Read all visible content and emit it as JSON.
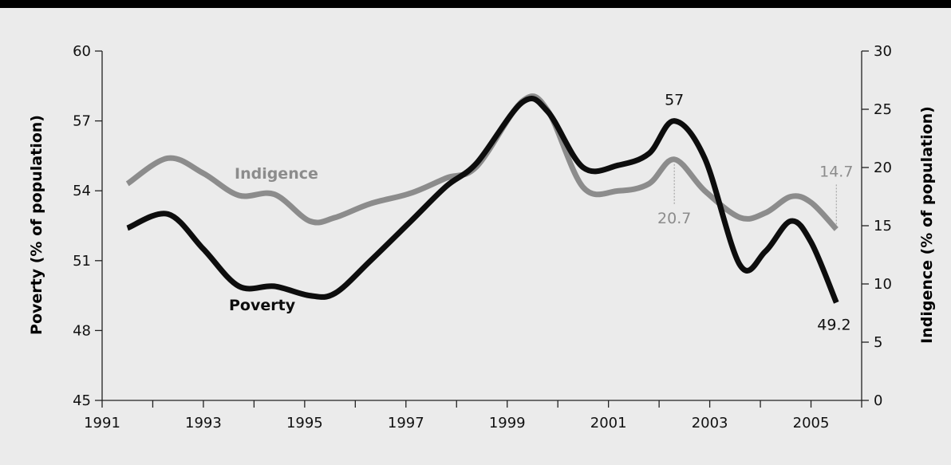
{
  "chart_data": {
    "type": "line",
    "x": [
      1991.5,
      1992.3,
      1993.0,
      1993.7,
      1994.4,
      1995.1,
      1995.6,
      1996.3,
      1997.1,
      1997.8,
      1998.4,
      1999.3,
      1999.8,
      2000.5,
      2001.2,
      2001.8,
      2002.3,
      2002.9,
      2003.6,
      2004.1,
      2004.6,
      2005.0,
      2005.5
    ],
    "series": [
      {
        "name": "Poverty",
        "axis": "left",
        "color": "#0d0d0d",
        "values": [
          52.4,
          53.0,
          51.5,
          49.9,
          49.9,
          49.5,
          49.6,
          51.0,
          52.7,
          54.2,
          55.2,
          57.8,
          57.4,
          55.0,
          55.1,
          55.6,
          57.0,
          55.4,
          50.8,
          51.4,
          52.7,
          51.8,
          49.2
        ]
      },
      {
        "name": "Indigence",
        "axis": "right",
        "color": "#8c8c8c",
        "values": [
          18.6,
          20.8,
          19.5,
          17.6,
          17.7,
          15.4,
          15.7,
          16.9,
          17.8,
          19.1,
          20.1,
          25.7,
          24.9,
          18.3,
          18.0,
          18.6,
          20.7,
          18.0,
          15.7,
          16.1,
          17.5,
          17.0,
          14.7
        ]
      }
    ],
    "left_axis": {
      "label": "Poverty (% of population)",
      "ylim": [
        45,
        60
      ],
      "ticks": [
        "45",
        "48",
        "51",
        "54",
        "57",
        "60"
      ]
    },
    "right_axis": {
      "label": "Indigence (% of population)",
      "ylim": [
        0,
        30
      ],
      "ticks": [
        "0",
        "5",
        "10",
        "15",
        "20",
        "25",
        "30"
      ]
    },
    "x_axis": {
      "xlim": [
        1991,
        2006
      ],
      "ticks": [
        "1991",
        "1993",
        "1995",
        "1997",
        "1999",
        "2001",
        "2003",
        "2005"
      ]
    },
    "series_labels": {
      "poverty": "Poverty",
      "indigence": "Indigence"
    },
    "annotations": {
      "poverty_peak": {
        "text": "57",
        "x": 2002.3,
        "value": 57.0
      },
      "poverty_end": {
        "text": "49.2",
        "x": 2005.5,
        "value": 49.2
      },
      "indigence_peak": {
        "text": "20.7",
        "x": 2002.3,
        "value": 20.7
      },
      "indigence_end": {
        "text": "14.7",
        "x": 2005.5,
        "value": 14.7
      }
    },
    "grid": false
  }
}
